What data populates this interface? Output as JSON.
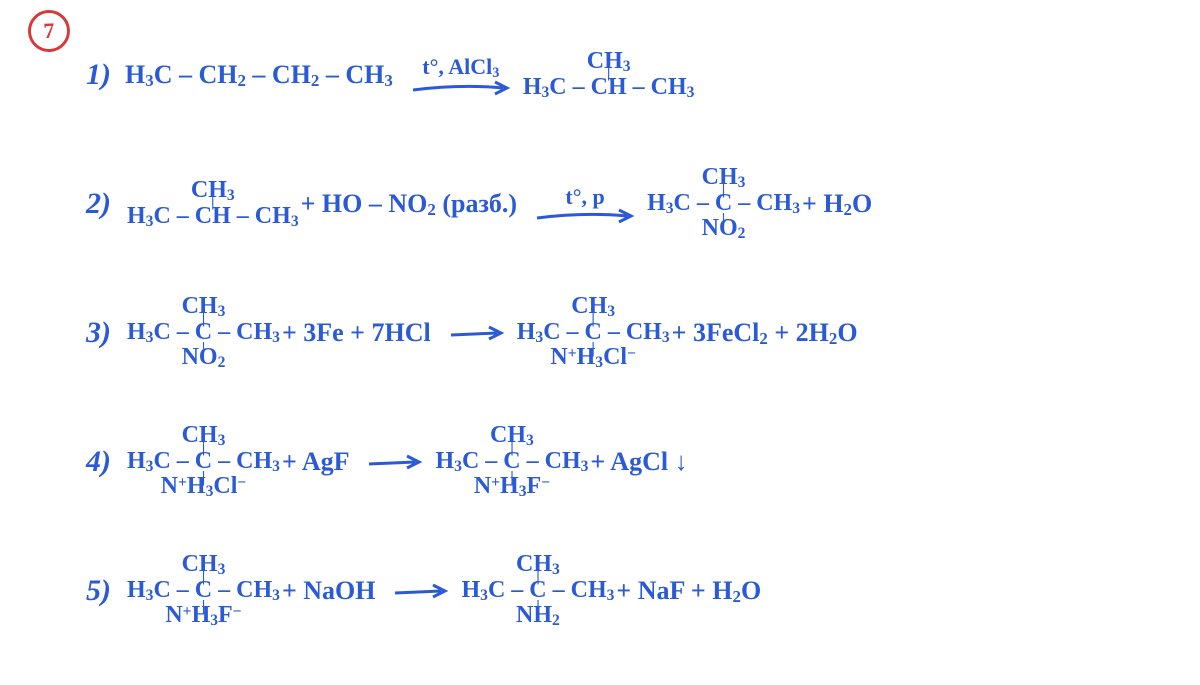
{
  "style": {
    "ink_color": "#2a5ad6",
    "badge_color": "#d63b3b",
    "background_color": "#ffffff",
    "font_family": "Segoe Script, Comic Sans MS, cursive",
    "base_fontsize_pt": 20,
    "number_fontsize_pt": 22,
    "badge_fontsize_pt": 16,
    "arrow_stroke_width": 3
  },
  "badge": "7",
  "equations": [
    {
      "number": "1)",
      "lhs_chain": "H₃C – CH₂ – CH₂ – CH₃",
      "arrow_cond": "t°, AlCl₃",
      "rhs_mol": {
        "top": "CH₃",
        "mid": "H₃C – CH – CH₃",
        "bot": ""
      },
      "tail": ""
    },
    {
      "number": "2)",
      "lhs_mol": {
        "top": "CH₃",
        "mid": "H₃C – CH – CH₃",
        "bot": ""
      },
      "lhs_tail": " + HO – NO₂ (разб.)",
      "arrow_cond": "t°, p",
      "rhs_mol": {
        "top": "CH₃",
        "mid": "H₃C – C – CH₃",
        "bot": "NO₂"
      },
      "tail": " + H₂O"
    },
    {
      "number": "3)",
      "lhs_mol": {
        "top": "CH₃",
        "mid": "H₃C – C – CH₃",
        "bot": "NO₂"
      },
      "lhs_tail": " + 3Fe + 7HCl",
      "arrow_cond": "",
      "rhs_mol": {
        "top": "CH₃",
        "mid": "H₃C – C – CH₃",
        "bot": "N⁺H₃Cl⁻"
      },
      "tail": " + 3FeCl₂ + 2H₂O"
    },
    {
      "number": "4)",
      "lhs_mol": {
        "top": "CH₃",
        "mid": "H₃C – C – CH₃",
        "bot": "N⁺H₃Cl⁻"
      },
      "lhs_tail": " + AgF",
      "arrow_cond": "",
      "rhs_mol": {
        "top": "CH₃",
        "mid": "H₃C – C – CH₃",
        "bot": "N⁺H₃F⁻"
      },
      "tail": " + AgCl ↓"
    },
    {
      "number": "5)",
      "lhs_mol": {
        "top": "CH₃",
        "mid": "H₃C – C – CH₃",
        "bot": "N⁺H₃F⁻"
      },
      "lhs_tail": " + NaOH",
      "arrow_cond": "",
      "rhs_mol": {
        "top": "CH₃",
        "mid": "H₃C – C – CH₃",
        "bot": "NH₂"
      },
      "tail": " + NaF + H₂O"
    }
  ]
}
